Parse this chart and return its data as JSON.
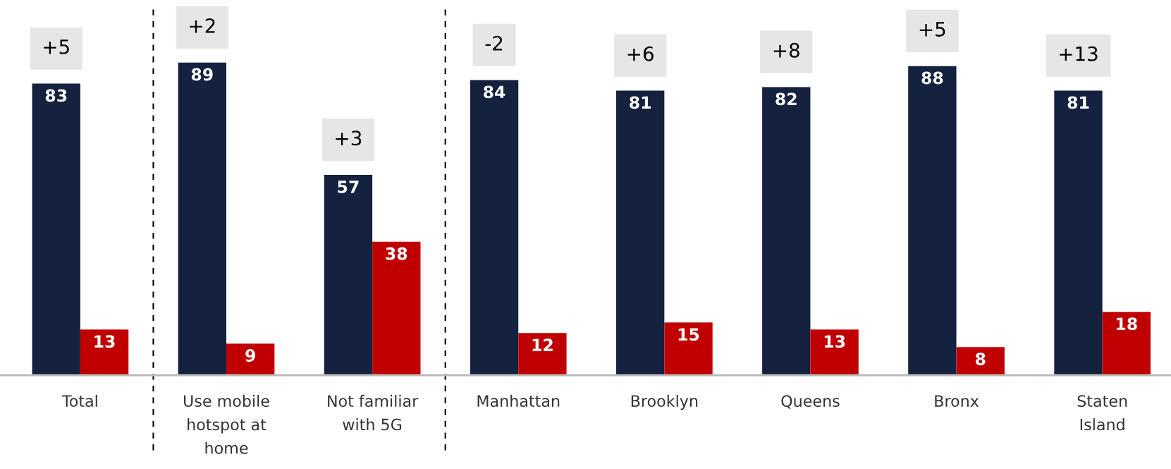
{
  "chart_data": {
    "type": "bar",
    "categories": [
      "Total",
      "Use mobile\nhotspot at\nhome",
      "Not familiar\nwith 5G",
      "Manhattan",
      "Brooklyn",
      "Queens",
      "Bronx",
      "Staten\nIsland"
    ],
    "series": [
      {
        "color": "#14213f",
        "values": [
          83,
          89,
          57,
          84,
          81,
          82,
          88,
          81
        ]
      },
      {
        "color": "#c00000",
        "values": [
          13,
          9,
          38,
          12,
          15,
          13,
          8,
          18
        ]
      }
    ],
    "data_labels": true,
    "tick_labels": "x",
    "grid": false,
    "legend": false,
    "annotations": [
      "+5",
      "+2",
      "+3",
      "-2",
      "+6",
      "+8",
      "+5",
      "+13"
    ]
  }
}
